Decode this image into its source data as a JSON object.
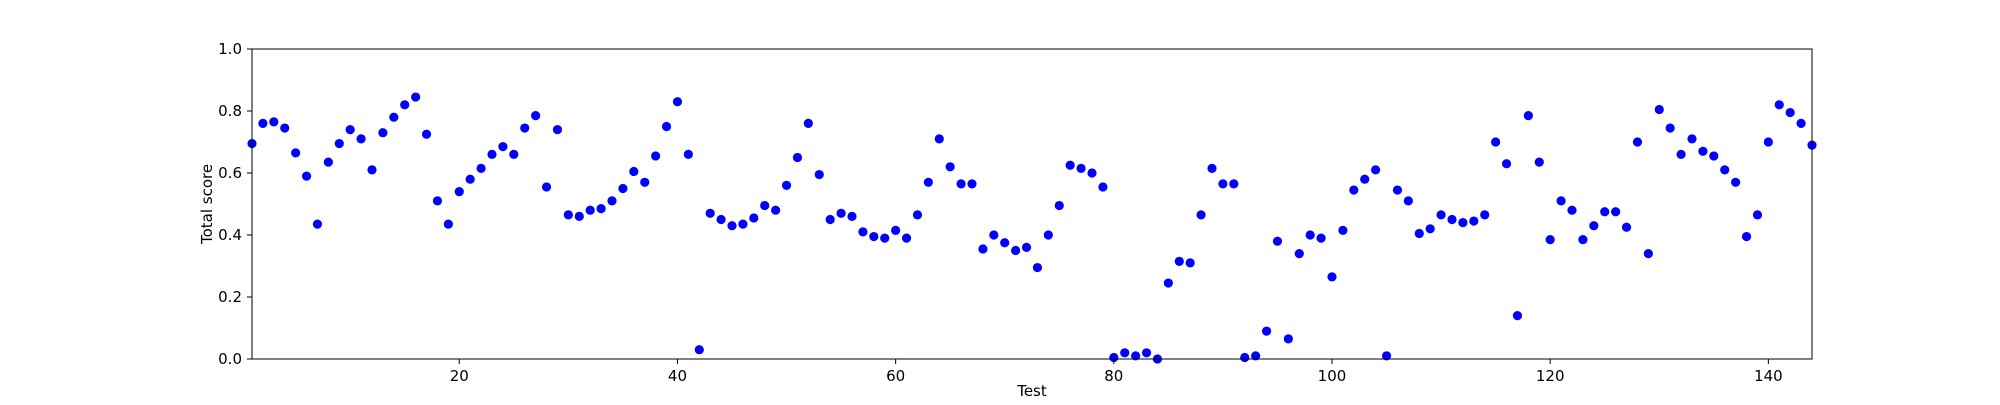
{
  "chart_data": {
    "type": "scatter",
    "title": "",
    "xlabel": "Test",
    "ylabel": "Total score",
    "xlim": [
      1,
      144
    ],
    "ylim": [
      0,
      1
    ],
    "x_ticks": [
      20,
      40,
      60,
      80,
      100,
      120,
      140
    ],
    "x_tick_labels": [
      "20",
      "40",
      "60",
      "80",
      "100",
      "120",
      "140"
    ],
    "y_ticks": [
      0.0,
      0.2,
      0.4,
      0.6,
      0.8,
      1.0
    ],
    "y_tick_labels": [
      "0.0",
      "0.2",
      "0.4",
      "0.6",
      "0.8",
      "1.0"
    ],
    "grid": false,
    "marker_color": "#0000ff",
    "series": [
      {
        "x": [
          1,
          2,
          3,
          4,
          5,
          6,
          7,
          8,
          9,
          10,
          11,
          12,
          13,
          14,
          15,
          16,
          17,
          18,
          19,
          20,
          21,
          22,
          23,
          24,
          25,
          26,
          27,
          28,
          29,
          30,
          31,
          32,
          33,
          34,
          35,
          36,
          37,
          38,
          39,
          40,
          41,
          42,
          43,
          44,
          45,
          46,
          47,
          48,
          49,
          50,
          51,
          52,
          53,
          54,
          55,
          56,
          57,
          58,
          59,
          60,
          61,
          62,
          63,
          64,
          65,
          66,
          67,
          68,
          69,
          70,
          71,
          72,
          73,
          74,
          75,
          76,
          77,
          78,
          79,
          80,
          81,
          82,
          83,
          84,
          85,
          86,
          87,
          88,
          89,
          90,
          91,
          92,
          93,
          94,
          95,
          96,
          97,
          98,
          99,
          100,
          101,
          102,
          103,
          104,
          105,
          106,
          107,
          108,
          109,
          110,
          111,
          112,
          113,
          114,
          115,
          116,
          117,
          118,
          119,
          120,
          121,
          122,
          123,
          124,
          125,
          126,
          127,
          128,
          129,
          130,
          131,
          132,
          133,
          134,
          135,
          136,
          137,
          138,
          139,
          140,
          141,
          142,
          143,
          144
        ],
        "y": [
          0.695,
          0.76,
          0.765,
          0.745,
          0.665,
          0.59,
          0.435,
          0.635,
          0.695,
          0.74,
          0.71,
          0.61,
          0.73,
          0.78,
          0.82,
          0.845,
          0.725,
          0.51,
          0.435,
          0.54,
          0.58,
          0.615,
          0.66,
          0.685,
          0.66,
          0.745,
          0.785,
          0.555,
          0.74,
          0.465,
          0.46,
          0.48,
          0.485,
          0.51,
          0.55,
          0.605,
          0.57,
          0.655,
          0.75,
          0.83,
          0.66,
          0.03,
          0.47,
          0.45,
          0.43,
          0.435,
          0.455,
          0.495,
          0.48,
          0.56,
          0.65,
          0.76,
          0.595,
          0.45,
          0.47,
          0.46,
          0.41,
          0.395,
          0.39,
          0.415,
          0.39,
          0.465,
          0.57,
          0.71,
          0.62,
          0.565,
          0.565,
          0.355,
          0.4,
          0.375,
          0.35,
          0.36,
          0.295,
          0.4,
          0.495,
          0.625,
          0.615,
          0.6,
          0.555,
          0.005,
          0.02,
          0.01,
          0.02,
          0.0,
          0.245,
          0.315,
          0.31,
          0.465,
          0.615,
          0.565,
          0.565,
          0.005,
          0.01,
          0.09,
          0.38,
          0.065,
          0.34,
          0.4,
          0.39,
          0.265,
          0.415,
          0.545,
          0.58,
          0.61,
          0.01,
          0.545,
          0.51,
          0.405,
          0.42,
          0.465,
          0.45,
          0.44,
          0.445,
          0.465,
          0.7,
          0.63,
          0.14,
          0.785,
          0.635,
          0.385,
          0.51,
          0.48,
          0.385,
          0.43,
          0.475,
          0.475,
          0.425,
          0.7,
          0.34,
          0.805,
          0.745,
          0.66,
          0.71,
          0.67,
          0.655,
          0.61,
          0.57,
          0.395,
          0.465,
          0.7,
          0.82,
          0.795,
          0.76,
          0.69
        ]
      }
    ]
  }
}
